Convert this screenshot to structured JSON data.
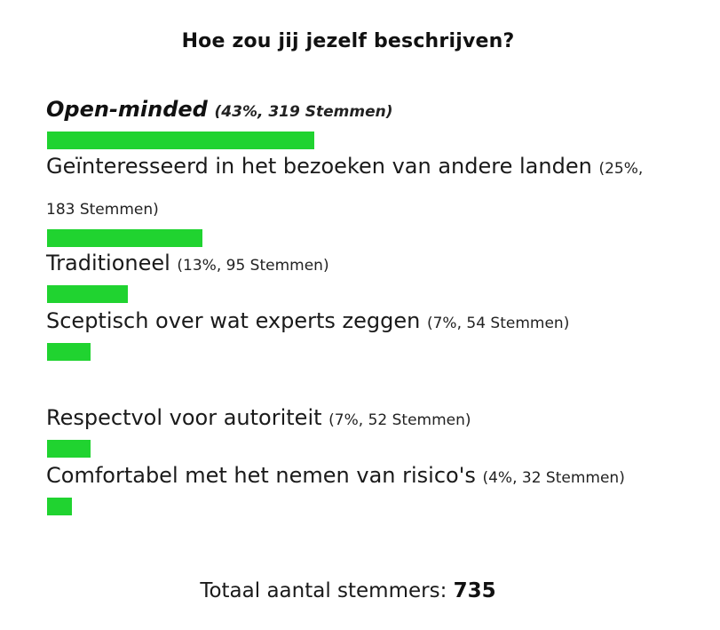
{
  "poll": {
    "title": "Hoe zou jij jezelf beschrijven?",
    "bar_color": "#20d330",
    "total_label": "Totaal aantal stemmers:",
    "total_value": "735"
  },
  "chart_data": {
    "type": "bar",
    "title": "Hoe zou jij jezelf beschrijven?",
    "categories": [
      "Open-minded",
      "Geïnteresseerd in het bezoeken van andere landen",
      "Traditioneel",
      "Sceptisch over wat experts zeggen",
      "Respectvol voor autoriteit",
      "Comfortabel met het nemen van risico's"
    ],
    "values": [
      43,
      25,
      13,
      7,
      7,
      4
    ],
    "votes": [
      319,
      183,
      95,
      54,
      52,
      32
    ],
    "meta_labels": [
      "(43%, 319 Stemmen)",
      "(25%, 183 Stemmen)",
      "(13%, 95 Stemmen)",
      "(7%, 54 Stemmen)",
      "(7%, 52 Stemmen)",
      "(4%, 32 Stemmen)"
    ],
    "total": 735,
    "orientation": "horizontal",
    "grid": false
  }
}
